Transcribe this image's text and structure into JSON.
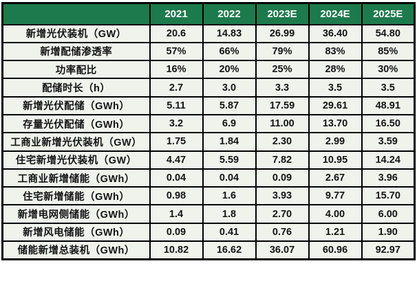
{
  "colors": {
    "header_bg": "#1d7a4c",
    "header_text": "#ffffff",
    "cell_bg": "#f0f2ec",
    "border": "#000000",
    "cell_text": "#141414"
  },
  "chart_data": {
    "type": "table",
    "columns": [
      "",
      "2021",
      "2022",
      "2023E",
      "2024E",
      "2025E"
    ],
    "rows": [
      {
        "label": "新增光伏装机（GW）",
        "values": [
          "20.6",
          "14.83",
          "26.99",
          "36.40",
          "54.80"
        ]
      },
      {
        "label": "新增配储渗透率",
        "values": [
          "57%",
          "66%",
          "79%",
          "83%",
          "85%"
        ]
      },
      {
        "label": "功率配比",
        "values": [
          "16%",
          "20%",
          "25%",
          "28%",
          "30%"
        ]
      },
      {
        "label": "配储时长（h）",
        "values": [
          "2.7",
          "3.0",
          "3.3",
          "3.5",
          "3.5"
        ]
      },
      {
        "label": "新增光伏配储（GWh）",
        "values": [
          "5.11",
          "5.87",
          "17.59",
          "29.61",
          "48.91"
        ]
      },
      {
        "label": "存量光伏配储（GWh）",
        "values": [
          "3.2",
          "6.9",
          "11.00",
          "13.70",
          "16.50"
        ]
      },
      {
        "label": "工商业新增光伏装机（GW）",
        "values": [
          "1.75",
          "1.84",
          "2.30",
          "2.99",
          "3.59"
        ]
      },
      {
        "label": "住宅新增光伏装机（GW）",
        "values": [
          "4.47",
          "5.59",
          "7.82",
          "10.95",
          "14.24"
        ]
      },
      {
        "label": "工商业新增储能（GWh）",
        "values": [
          "0.04",
          "0.04",
          "0.09",
          "2.67",
          "3.96"
        ]
      },
      {
        "label": "住宅新增储能（GWh）",
        "values": [
          "0.98",
          "1.6",
          "3.93",
          "9.77",
          "15.70"
        ]
      },
      {
        "label": "新增电网侧储能（GWh）",
        "values": [
          "1.4",
          "1.8",
          "2.70",
          "4.00",
          "6.00"
        ]
      },
      {
        "label": "新增风电储能（GWh）",
        "values": [
          "0.09",
          "0.41",
          "0.76",
          "1.21",
          "1.90"
        ]
      },
      {
        "label": "储能新增总装机（GWh）",
        "values": [
          "10.82",
          "16.62",
          "36.07",
          "60.96",
          "92.97"
        ]
      }
    ]
  }
}
